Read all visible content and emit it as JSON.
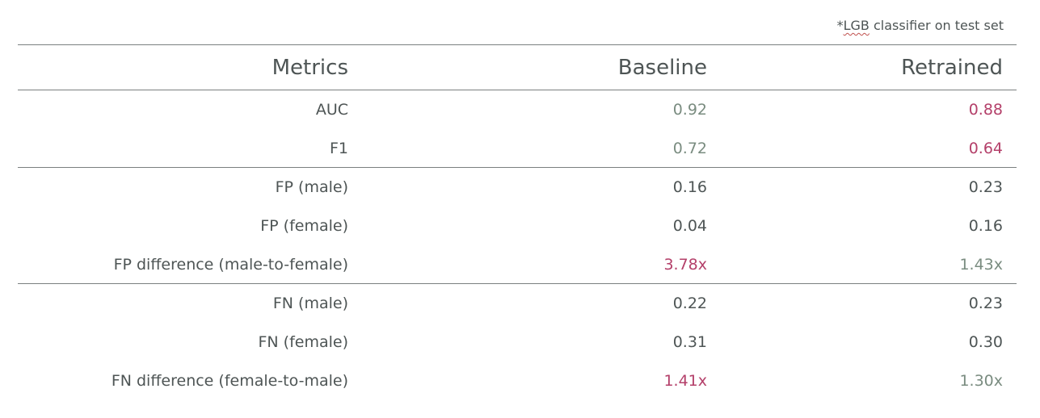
{
  "note": {
    "prefix": "*",
    "abbr": "LGB",
    "suffix": " classifier on test set"
  },
  "table": {
    "columns": [
      "Metrics",
      "Baseline",
      "Retrained"
    ],
    "groups": [
      {
        "rows": [
          {
            "metric": "AUC",
            "baseline": "0.92",
            "retrained": "0.88",
            "baseline_tone": "good",
            "retrained_tone": "bad"
          },
          {
            "metric": "F1",
            "baseline": "0.72",
            "retrained": "0.64",
            "baseline_tone": "good",
            "retrained_tone": "bad"
          }
        ]
      },
      {
        "rows": [
          {
            "metric": "FP (male)",
            "baseline": "0.16",
            "retrained": "0.23",
            "baseline_tone": "neutral",
            "retrained_tone": "neutral"
          },
          {
            "metric": "FP (female)",
            "baseline": "0.04",
            "retrained": "0.16",
            "baseline_tone": "neutral",
            "retrained_tone": "neutral"
          },
          {
            "metric": "FP difference (male-to-female)",
            "baseline": "3.78x",
            "retrained": "1.43x",
            "baseline_tone": "bad",
            "retrained_tone": "good"
          }
        ]
      },
      {
        "rows": [
          {
            "metric": "FN (male)",
            "baseline": "0.22",
            "retrained": "0.23",
            "baseline_tone": "neutral",
            "retrained_tone": "neutral"
          },
          {
            "metric": "FN (female)",
            "baseline": "0.31",
            "retrained": "0.30",
            "baseline_tone": "neutral",
            "retrained_tone": "neutral"
          },
          {
            "metric": "FN difference (female-to-male)",
            "baseline": "1.41x",
            "retrained": "1.30x",
            "baseline_tone": "bad",
            "retrained_tone": "good"
          }
        ]
      }
    ]
  },
  "colors": {
    "good": "#7a8c80",
    "bad": "#b4406a",
    "neutral": "#4e5555",
    "rule": "#7a7f7f"
  }
}
